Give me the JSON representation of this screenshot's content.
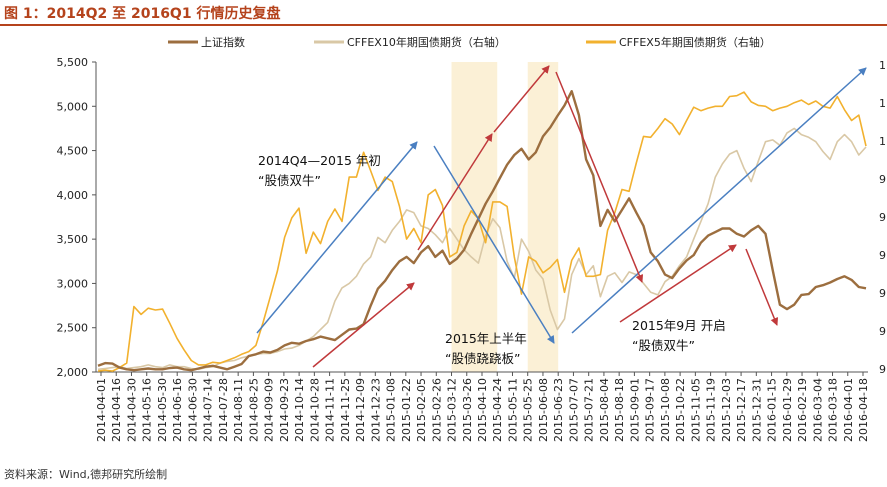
{
  "figure": {
    "title": "图 1：2014Q2 至 2016Q1 行情历史复盘",
    "source": "资料来源：Wind,德邦研究所绘制"
  },
  "chart_data": {
    "type": "line",
    "title": "",
    "ylim": [
      2000,
      5500
    ],
    "yticks": [
      "5,500",
      "5,000",
      "4,500",
      "4,000",
      "3,500",
      "3,000",
      "2,500",
      "2,000"
    ],
    "ytick_values": [
      5500,
      5000,
      4500,
      4000,
      3500,
      3000,
      2500,
      2000
    ],
    "right_axis_labels": [
      "1",
      "1",
      "1",
      "9",
      "9",
      "9",
      "9",
      "9",
      "9"
    ],
    "x_labels": [
      "2014-04-01",
      "2014-04-16",
      "2014-04-30",
      "2014-05-16",
      "2014-05-30",
      "2014-06-16",
      "2014-06-30",
      "2014-07-14",
      "2014-07-28",
      "2014-08-11",
      "2014-08-25",
      "2014-09-09",
      "2014-09-23",
      "2014-10-14",
      "2014-10-28",
      "2014-11-11",
      "2014-11-25",
      "2014-12-09",
      "2014-12-23",
      "2015-01-08",
      "2015-01-22",
      "2015-02-05",
      "2015-02-26",
      "2015-03-12",
      "2015-03-26",
      "2015-04-10",
      "2015-04-24",
      "2015-05-11",
      "2015-05-25",
      "2015-06-08",
      "2015-06-23",
      "2015-07-07",
      "2015-07-21",
      "2015-08-04",
      "2015-08-18",
      "2015-09-01",
      "2015-09-17",
      "2015-10-08",
      "2015-10-22",
      "2015-11-05",
      "2015-11-19",
      "2015-12-03",
      "2015-12-17",
      "2015-12-31",
      "2016-01-15",
      "2016-01-29",
      "2016-02-19",
      "2016-03-04",
      "2016-03-18",
      "2016-04-01",
      "2016-04-18"
    ],
    "legend": [
      "上证指数",
      "CFFEX10年期国债期货（右轴）",
      "CFFEX5年期国债期货（右轴）"
    ],
    "series_colors": [
      "#9c6e3f",
      "#d9c8a6",
      "#f2b12e"
    ],
    "shaded_color": "#fbf0d6",
    "arrow_colors": {
      "blue": "#4a7fc1",
      "red": "#c0393b"
    },
    "shaded_periods": [
      {
        "from": "2015-03-12",
        "to": "2015-04-24"
      },
      {
        "from": "2015-05-25",
        "to": "2015-06-23"
      }
    ],
    "series": [
      {
        "name": "上证指数",
        "values": [
          2070,
          2100,
          2095,
          2050,
          2030,
          2020,
          2030,
          2040,
          2030,
          2030,
          2045,
          2050,
          2030,
          2020,
          2040,
          2060,
          2070,
          2050,
          2030,
          2060,
          2090,
          2180,
          2200,
          2230,
          2220,
          2250,
          2300,
          2330,
          2320,
          2350,
          2370,
          2400,
          2380,
          2360,
          2420,
          2480,
          2490,
          2540,
          2750,
          2940,
          3030,
          3150,
          3250,
          3300,
          3230,
          3350,
          3420,
          3300,
          3370,
          3220,
          3280,
          3380,
          3560,
          3730,
          3900,
          4040,
          4190,
          4340,
          4450,
          4520,
          4400,
          4480,
          4660,
          4760,
          4890,
          5010,
          5170,
          4900,
          4400,
          4220,
          3650,
          3830,
          3700,
          3830,
          3960,
          3800,
          3650,
          3350,
          3250,
          3100,
          3060,
          3170,
          3260,
          3320,
          3460,
          3540,
          3580,
          3620,
          3620,
          3560,
          3530,
          3600,
          3650,
          3560,
          3150,
          2760,
          2710,
          2760,
          2870,
          2880,
          2960,
          2980,
          3010,
          3050,
          3080,
          3040,
          2960,
          2945
        ]
      },
      {
        "name": "CFFEX10年期国债期货（右轴）",
        "values": [
          2030,
          2040,
          2050,
          2060,
          2040,
          2050,
          2060,
          2080,
          2060,
          2050,
          2080,
          2060,
          2060,
          2040,
          2030,
          2050,
          2060,
          2100,
          2120,
          2130,
          2160,
          2180,
          2200,
          2210,
          2210,
          2230,
          2260,
          2270,
          2300,
          2350,
          2400,
          2480,
          2560,
          2800,
          2950,
          3000,
          3080,
          3220,
          3300,
          3520,
          3460,
          3600,
          3700,
          3830,
          3800,
          3650,
          3620,
          3550,
          3460,
          3620,
          3500,
          3380,
          3300,
          3230,
          3540,
          3730,
          3630,
          3250,
          3060,
          3500,
          3360,
          3150,
          3050,
          2700,
          2480,
          2600,
          3100,
          3280,
          3100,
          3200,
          2850,
          3080,
          3120,
          3010,
          3130,
          3100,
          3000,
          2900,
          2870,
          3020,
          3080,
          3200,
          3300,
          3500,
          3700,
          3900,
          4200,
          4350,
          4460,
          4500,
          4300,
          4150,
          4380,
          4600,
          4620,
          4560,
          4700,
          4750,
          4680,
          4650,
          4600,
          4490,
          4400,
          4600,
          4680,
          4600,
          4450,
          4540
        ]
      },
      {
        "name": "CFFEX5年期国债期货（右轴）",
        "values": [
          2010,
          2020,
          2010,
          2050,
          2100,
          2740,
          2650,
          2720,
          2700,
          2710,
          2550,
          2380,
          2250,
          2130,
          2080,
          2080,
          2110,
          2100,
          2130,
          2160,
          2200,
          2230,
          2300,
          2560,
          2850,
          3140,
          3520,
          3740,
          3850,
          3340,
          3580,
          3450,
          3700,
          3840,
          3700,
          4200,
          4200,
          4480,
          4270,
          4050,
          4200,
          4150,
          3870,
          3500,
          3620,
          3460,
          4000,
          4060,
          3880,
          3300,
          3350,
          3650,
          3820,
          3730,
          3460,
          3920,
          3920,
          3870,
          3300,
          2880,
          3300,
          3250,
          3120,
          3180,
          3270,
          2900,
          3260,
          3400,
          3080,
          3080,
          3100,
          3600,
          3800,
          4060,
          4040,
          4360,
          4660,
          4650,
          4750,
          4860,
          4800,
          4680,
          4840,
          4990,
          4950,
          4980,
          5000,
          5000,
          5110,
          5120,
          5160,
          5050,
          5010,
          5000,
          4950,
          4980,
          5000,
          5040,
          5070,
          5020,
          5060,
          5000,
          4980,
          5110,
          4960,
          4840,
          4900,
          4550
        ]
      }
    ],
    "annotations": [
      {
        "lines": [
          "2014Q4—2015 年初",
          "“股债双牛”"
        ]
      },
      {
        "lines": [
          "2015年上半年",
          "“股债跷跷板”"
        ]
      },
      {
        "lines": [
          "2015年9月 开启",
          "“股债双牛”"
        ]
      }
    ]
  }
}
